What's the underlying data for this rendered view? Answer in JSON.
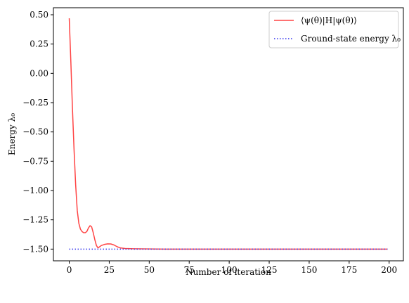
{
  "chart_data": {
    "type": "line",
    "title": "",
    "xlabel": "Number of iteration",
    "ylabel": "Energy λ₀",
    "xlim": [
      -9.9,
      208.9
    ],
    "ylim": [
      -1.6,
      0.56
    ],
    "xticks": [
      0,
      25,
      50,
      75,
      100,
      125,
      150,
      175,
      200
    ],
    "yticks": [
      0.5,
      0.25,
      0.0,
      -0.25,
      -0.5,
      -0.75,
      -1.0,
      -1.25,
      -1.5
    ],
    "ytick_labels": [
      "0.50",
      "0.25",
      "0.00",
      "−0.25",
      "−0.50",
      "−0.75",
      "−1.00",
      "−1.25",
      "−1.50"
    ],
    "grid": false,
    "legend_position": "top-right",
    "series": [
      {
        "name": "⟨ψ(θ)|H|ψ(θ)⟩",
        "color": "#ff4444",
        "style": "solid",
        "x": [
          0,
          1,
          2,
          3,
          4,
          5,
          6,
          7,
          8,
          9,
          10,
          11,
          12,
          13,
          14,
          15,
          16,
          17,
          18,
          19,
          20,
          22,
          24,
          26,
          28,
          30,
          32,
          35,
          40,
          45,
          50,
          60,
          80,
          100,
          120,
          150,
          180,
          199
        ],
        "y": [
          0.47,
          0.1,
          -0.3,
          -0.65,
          -0.95,
          -1.17,
          -1.28,
          -1.33,
          -1.35,
          -1.36,
          -1.36,
          -1.35,
          -1.32,
          -1.3,
          -1.31,
          -1.36,
          -1.42,
          -1.47,
          -1.49,
          -1.48,
          -1.47,
          -1.46,
          -1.455,
          -1.456,
          -1.465,
          -1.48,
          -1.49,
          -1.495,
          -1.497,
          -1.498,
          -1.499,
          -1.5,
          -1.5,
          -1.5,
          -1.5,
          -1.5,
          -1.5,
          -1.5
        ]
      },
      {
        "name": "Ground-state energy λ₀",
        "color": "#3333ee",
        "style": "dotted",
        "x": [
          0,
          199
        ],
        "y": [
          -1.5,
          -1.5
        ]
      }
    ]
  }
}
